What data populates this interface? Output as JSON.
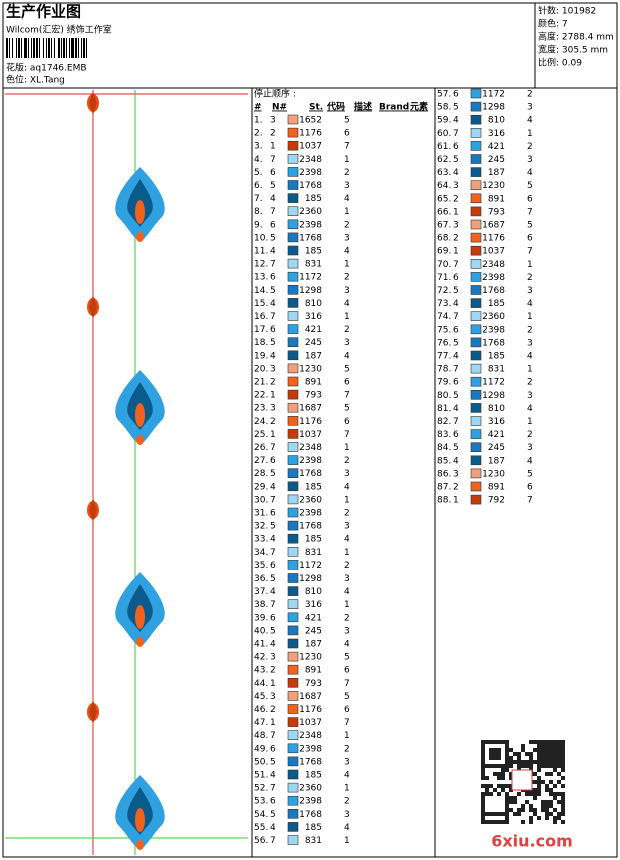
{
  "header": {
    "title": "生产作业图",
    "studio": "Wilcom(汇宏) 绣饰工作室",
    "file": "花版: aq1746.EMB",
    "color_way": "色位: XL.Tang",
    "info": [
      "针数: 101982",
      "颜色: 7",
      "高度: 2788.4 mm",
      "宽度: 305.5 mm",
      "比例: 0.09"
    ]
  },
  "needle_colors": {
    "1": "#c43c0c",
    "2": "#f0621e",
    "3": "#f0a07a",
    "4": "#0b5a8c",
    "5": "#1a78bf",
    "6": "#2fa0e0",
    "7": "#9fd6f2"
  },
  "stop_sequence": {
    "label": "停止顺序 :",
    "headers": [
      "#",
      "N#",
      "St.",
      "代码",
      "描述",
      "Brand",
      "元素"
    ],
    "rows": [
      [
        "1.",
        "3",
        "1652",
        "5"
      ],
      [
        "2.",
        "2",
        "1176",
        "6"
      ],
      [
        "3.",
        "1",
        "1037",
        "7"
      ],
      [
        "4.",
        "7",
        "2348",
        "1"
      ],
      [
        "5.",
        "6",
        "2398",
        "2"
      ],
      [
        "6.",
        "5",
        "1768",
        "3"
      ],
      [
        "7.",
        "4",
        "185",
        "4"
      ],
      [
        "8.",
        "7",
        "2360",
        "1"
      ],
      [
        "9.",
        "6",
        "2398",
        "2"
      ],
      [
        "10.",
        "5",
        "1768",
        "3"
      ],
      [
        "11.",
        "4",
        "185",
        "4"
      ],
      [
        "12.",
        "7",
        "831",
        "1"
      ],
      [
        "13.",
        "6",
        "1172",
        "2"
      ],
      [
        "14.",
        "5",
        "1298",
        "3"
      ],
      [
        "15.",
        "4",
        "810",
        "4"
      ],
      [
        "16.",
        "7",
        "316",
        "1"
      ],
      [
        "17.",
        "6",
        "421",
        "2"
      ],
      [
        "18.",
        "5",
        "245",
        "3"
      ],
      [
        "19.",
        "4",
        "187",
        "4"
      ],
      [
        "20.",
        "3",
        "1230",
        "5"
      ],
      [
        "21.",
        "2",
        "891",
        "6"
      ],
      [
        "22.",
        "1",
        "793",
        "7"
      ],
      [
        "23.",
        "3",
        "1687",
        "5"
      ],
      [
        "24.",
        "2",
        "1176",
        "6"
      ],
      [
        "25.",
        "1",
        "1037",
        "7"
      ],
      [
        "26.",
        "7",
        "2348",
        "1"
      ],
      [
        "27.",
        "6",
        "2398",
        "2"
      ],
      [
        "28.",
        "5",
        "1768",
        "3"
      ],
      [
        "29.",
        "4",
        "185",
        "4"
      ],
      [
        "30.",
        "7",
        "2360",
        "1"
      ],
      [
        "31.",
        "6",
        "2398",
        "2"
      ],
      [
        "32.",
        "5",
        "1768",
        "3"
      ],
      [
        "33.",
        "4",
        "185",
        "4"
      ],
      [
        "34.",
        "7",
        "831",
        "1"
      ],
      [
        "35.",
        "6",
        "1172",
        "2"
      ],
      [
        "36.",
        "5",
        "1298",
        "3"
      ],
      [
        "37.",
        "4",
        "810",
        "4"
      ],
      [
        "38.",
        "7",
        "316",
        "1"
      ],
      [
        "39.",
        "6",
        "421",
        "2"
      ],
      [
        "40.",
        "5",
        "245",
        "3"
      ],
      [
        "41.",
        "4",
        "187",
        "4"
      ],
      [
        "42.",
        "3",
        "1230",
        "5"
      ],
      [
        "43.",
        "2",
        "891",
        "6"
      ],
      [
        "44.",
        "1",
        "793",
        "7"
      ],
      [
        "45.",
        "3",
        "1687",
        "5"
      ],
      [
        "46.",
        "2",
        "1176",
        "6"
      ],
      [
        "47.",
        "1",
        "1037",
        "7"
      ],
      [
        "48.",
        "7",
        "2348",
        "1"
      ],
      [
        "49.",
        "6",
        "2398",
        "2"
      ],
      [
        "50.",
        "5",
        "1768",
        "3"
      ],
      [
        "51.",
        "4",
        "185",
        "4"
      ],
      [
        "52.",
        "7",
        "2360",
        "1"
      ],
      [
        "53.",
        "6",
        "2398",
        "2"
      ],
      [
        "54.",
        "5",
        "1768",
        "3"
      ],
      [
        "55.",
        "4",
        "185",
        "4"
      ],
      [
        "56.",
        "7",
        "831",
        "1"
      ],
      [
        "57.",
        "6",
        "1172",
        "2"
      ],
      [
        "58.",
        "5",
        "1298",
        "3"
      ],
      [
        "59.",
        "4",
        "810",
        "4"
      ],
      [
        "60.",
        "7",
        "316",
        "1"
      ],
      [
        "61.",
        "6",
        "421",
        "2"
      ],
      [
        "62.",
        "5",
        "245",
        "3"
      ],
      [
        "63.",
        "4",
        "187",
        "4"
      ],
      [
        "64.",
        "3",
        "1230",
        "5"
      ],
      [
        "65.",
        "2",
        "891",
        "6"
      ],
      [
        "66.",
        "1",
        "793",
        "7"
      ],
      [
        "67.",
        "3",
        "1687",
        "5"
      ],
      [
        "68.",
        "2",
        "1176",
        "6"
      ],
      [
        "69.",
        "1",
        "1037",
        "7"
      ],
      [
        "70.",
        "7",
        "2348",
        "1"
      ],
      [
        "71.",
        "6",
        "2398",
        "2"
      ],
      [
        "72.",
        "5",
        "1768",
        "3"
      ],
      [
        "73.",
        "4",
        "185",
        "4"
      ],
      [
        "74.",
        "7",
        "2360",
        "1"
      ],
      [
        "75.",
        "6",
        "2398",
        "2"
      ],
      [
        "76.",
        "5",
        "1768",
        "3"
      ],
      [
        "77.",
        "4",
        "185",
        "4"
      ],
      [
        "78.",
        "7",
        "831",
        "1"
      ],
      [
        "79.",
        "6",
        "1172",
        "2"
      ],
      [
        "80.",
        "5",
        "1298",
        "3"
      ],
      [
        "81.",
        "4",
        "810",
        "4"
      ],
      [
        "82.",
        "7",
        "316",
        "1"
      ],
      [
        "83.",
        "6",
        "421",
        "2"
      ],
      [
        "84.",
        "5",
        "245",
        "3"
      ],
      [
        "85.",
        "4",
        "187",
        "4"
      ],
      [
        "86.",
        "3",
        "1230",
        "5"
      ],
      [
        "87.",
        "2",
        "891",
        "6"
      ],
      [
        "88.",
        "1",
        "792",
        "7"
      ]
    ]
  },
  "watermark": "6xiu.com"
}
